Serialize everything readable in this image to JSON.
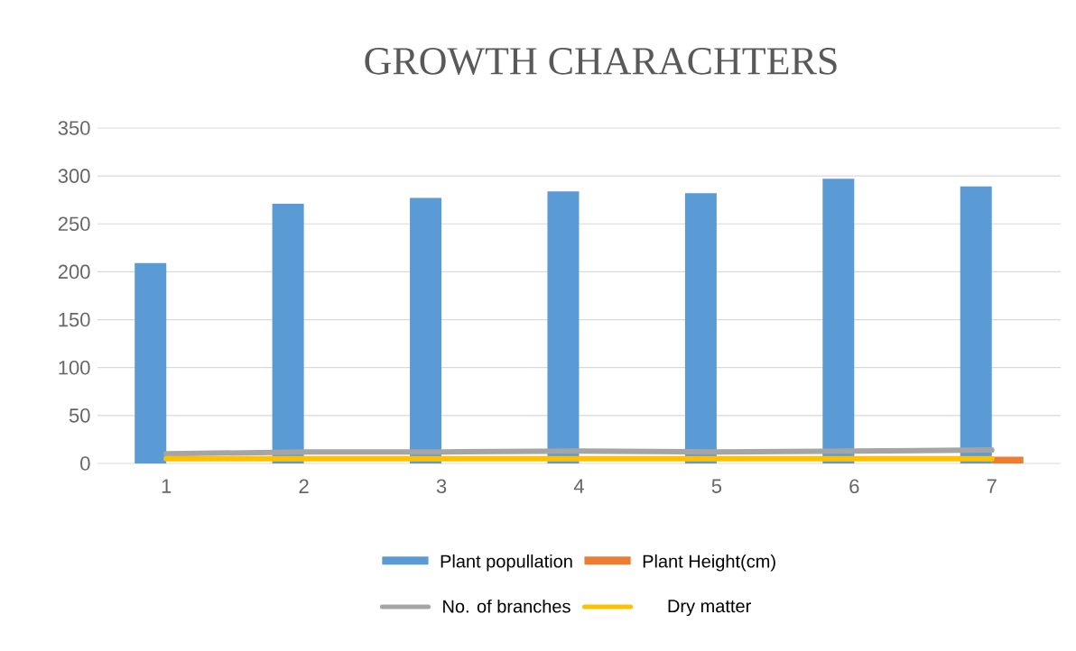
{
  "chart_data": {
    "type": "bar",
    "title": "GROWTH CHARACHTERS",
    "categories": [
      "1",
      "2",
      "3",
      "4",
      "5",
      "6",
      "7"
    ],
    "series": [
      {
        "name": "Plant popullation",
        "type": "bar",
        "color": "#5b9bd5",
        "values": [
          209,
          271,
          277,
          284,
          282,
          297,
          289
        ]
      },
      {
        "name": "Plant Height(cm)",
        "type": "bar",
        "color": "#ed7d31",
        "values": [
          null,
          null,
          null,
          null,
          null,
          null,
          7
        ]
      },
      {
        "name": "No. of branches",
        "type": "line",
        "color": "#a5a5a5",
        "values": [
          10,
          12,
          12,
          13,
          12,
          13,
          14
        ]
      },
      {
        "name": "Dry matter",
        "type": "line",
        "color": "#ffc000",
        "values": [
          5,
          5,
          5,
          5,
          5,
          5,
          5
        ]
      }
    ],
    "ylim": [
      0,
      350
    ],
    "yticks": [
      0,
      50,
      100,
      150,
      200,
      250,
      300,
      350
    ],
    "grid": "y",
    "legend": "bottom",
    "line_style": "solid",
    "marker": "none"
  }
}
